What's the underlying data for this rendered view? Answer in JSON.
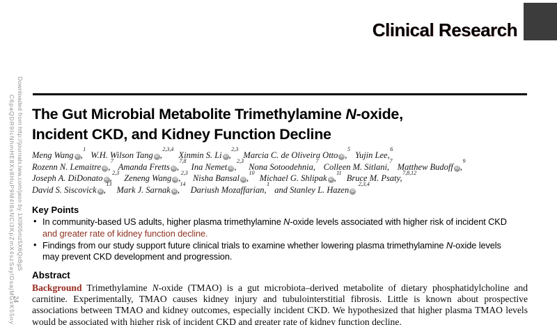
{
  "watermark": {
    "line1": "Downloaded from http://journals.lww.com/jasn by 1XI905mz5X6QxBgS",
    "line2": "C6paQDR9IcNhmHE8Xv8HuP9M4t8sNCi3KpZmX4szSaylDsajMGxK55nyV+",
    "page_number": "24"
  },
  "header": {
    "section_label": "Clinical Research"
  },
  "title": {
    "segments": [
      {
        "t": "The Gut Microbial Metabolite Trimethylamine "
      },
      {
        "t": "N",
        "style": "italic"
      },
      {
        "t": "-oxide,"
      },
      {
        "br": true
      },
      {
        "t": "Incident CKD, and Kidney Function Decline"
      }
    ]
  },
  "authors": {
    "orcid_icon_label": "iD",
    "lines": [
      [
        {
          "name": "Meng Wang",
          "orcid": true,
          "sep": ",",
          "sup": "1"
        },
        {
          "name": "W.H. Wilson Tang",
          "orcid": true,
          "sep": ",",
          "sup": "2,3,4"
        },
        {
          "name": "Xinmin S. Li",
          "orcid": true,
          "sep": ",",
          "sup": "2,3"
        },
        {
          "name": "Marcia C. de Oliveira Otto",
          "orcid": true,
          "sep": ",",
          "sup": "5"
        },
        {
          "name": "Yujin Lee",
          "orcid": false,
          "sep": ",",
          "sup": "6"
        }
      ],
      [
        {
          "name": "Rozenn N. Lemaitre",
          "orcid": true,
          "sep": ",",
          "sup": "7"
        },
        {
          "name": "Amanda Fretts",
          "orcid": true,
          "sep": ",",
          "sup": "7,8"
        },
        {
          "name": "Ina Nemet",
          "orcid": true,
          "sep": ",",
          "sup": "2,3"
        },
        {
          "name": "Nona Sotoodehnia",
          "orcid": false,
          "sep": ",",
          "sup": "7"
        },
        {
          "name": "Colleen M. Sitlani",
          "orcid": false,
          "sep": ",",
          "sup": "7"
        },
        {
          "name": "Matthew Budoff",
          "orcid": true,
          "sep": ",",
          "sup": "9"
        }
      ],
      [
        {
          "name": "Joseph A. DiDonato",
          "orcid": true,
          "sep": ",",
          "sup": "2,3"
        },
        {
          "name": "Zeneng Wang",
          "orcid": true,
          "sep": ",",
          "sup": "2,3"
        },
        {
          "name": "Nisha Bansal",
          "orcid": true,
          "sep": ",",
          "sup": "10"
        },
        {
          "name": "Michael G. Shlipak",
          "orcid": true,
          "sep": ",",
          "sup": "11"
        },
        {
          "name": "Bruce M. Psaty",
          "orcid": false,
          "sep": ",",
          "sup": "7,8,12"
        }
      ],
      [
        {
          "name": "David S. Siscovick",
          "orcid": true,
          "sep": ",",
          "sup": "13"
        },
        {
          "name": "Mark J. Sarnak",
          "orcid": true,
          "sep": ",",
          "sup": "14"
        },
        {
          "name": "Dariush Mozaffarian",
          "orcid": false,
          "sep": ",",
          "sup": "1"
        },
        {
          "name": "and Stanley L. Hazen",
          "orcid": true,
          "sep": " ",
          "sup": "2,3,4"
        }
      ]
    ]
  },
  "key_points": {
    "heading": "Key Points",
    "bullet_glyph": "•",
    "bullets": [
      [
        {
          "t": "In community-based US adults, higher plasma trimethylamine "
        },
        {
          "t": "N",
          "style": "italic"
        },
        {
          "t": "-oxide levels associated with higher risk of incident CKD"
        },
        {
          "br": true
        },
        {
          "t": "and greater rate of kidney function decline.",
          "style": "red"
        }
      ],
      [
        {
          "t": "Findings from our study support future clinical trials to examine whether lowering plasma trimethylamine "
        },
        {
          "t": "N",
          "style": "italic"
        },
        {
          "t": "-oxide levels"
        },
        {
          "br": true
        },
        {
          "t": "may prevent CKD development and progression."
        }
      ]
    ]
  },
  "abstract": {
    "heading": "Abstract",
    "paragraph": [
      {
        "t": "Background",
        "style": "label"
      },
      {
        "t": " Trimethylamine "
      },
      {
        "t": "N",
        "style": "italic"
      },
      {
        "t": "-oxide (TMAO) is a gut microbiota–derived metabolite of dietary phosphatidylcholine and carnitine. Experimentally, TMAO causes kidney injury and tubulointerstitial fibrosis. Little is known about prospective associations between TMAO and kidney outcomes, especially incident CKD. We hypothesized that higher plasma TMAO levels would be associated with higher risk of incident CKD and greater rate of kidney function decline."
      }
    ]
  },
  "colors": {
    "accent_red": "#97291e",
    "key_point_red": "#8e3222",
    "watermark_gray": "#909090",
    "corner_box_gray": "#3c3c3c"
  }
}
